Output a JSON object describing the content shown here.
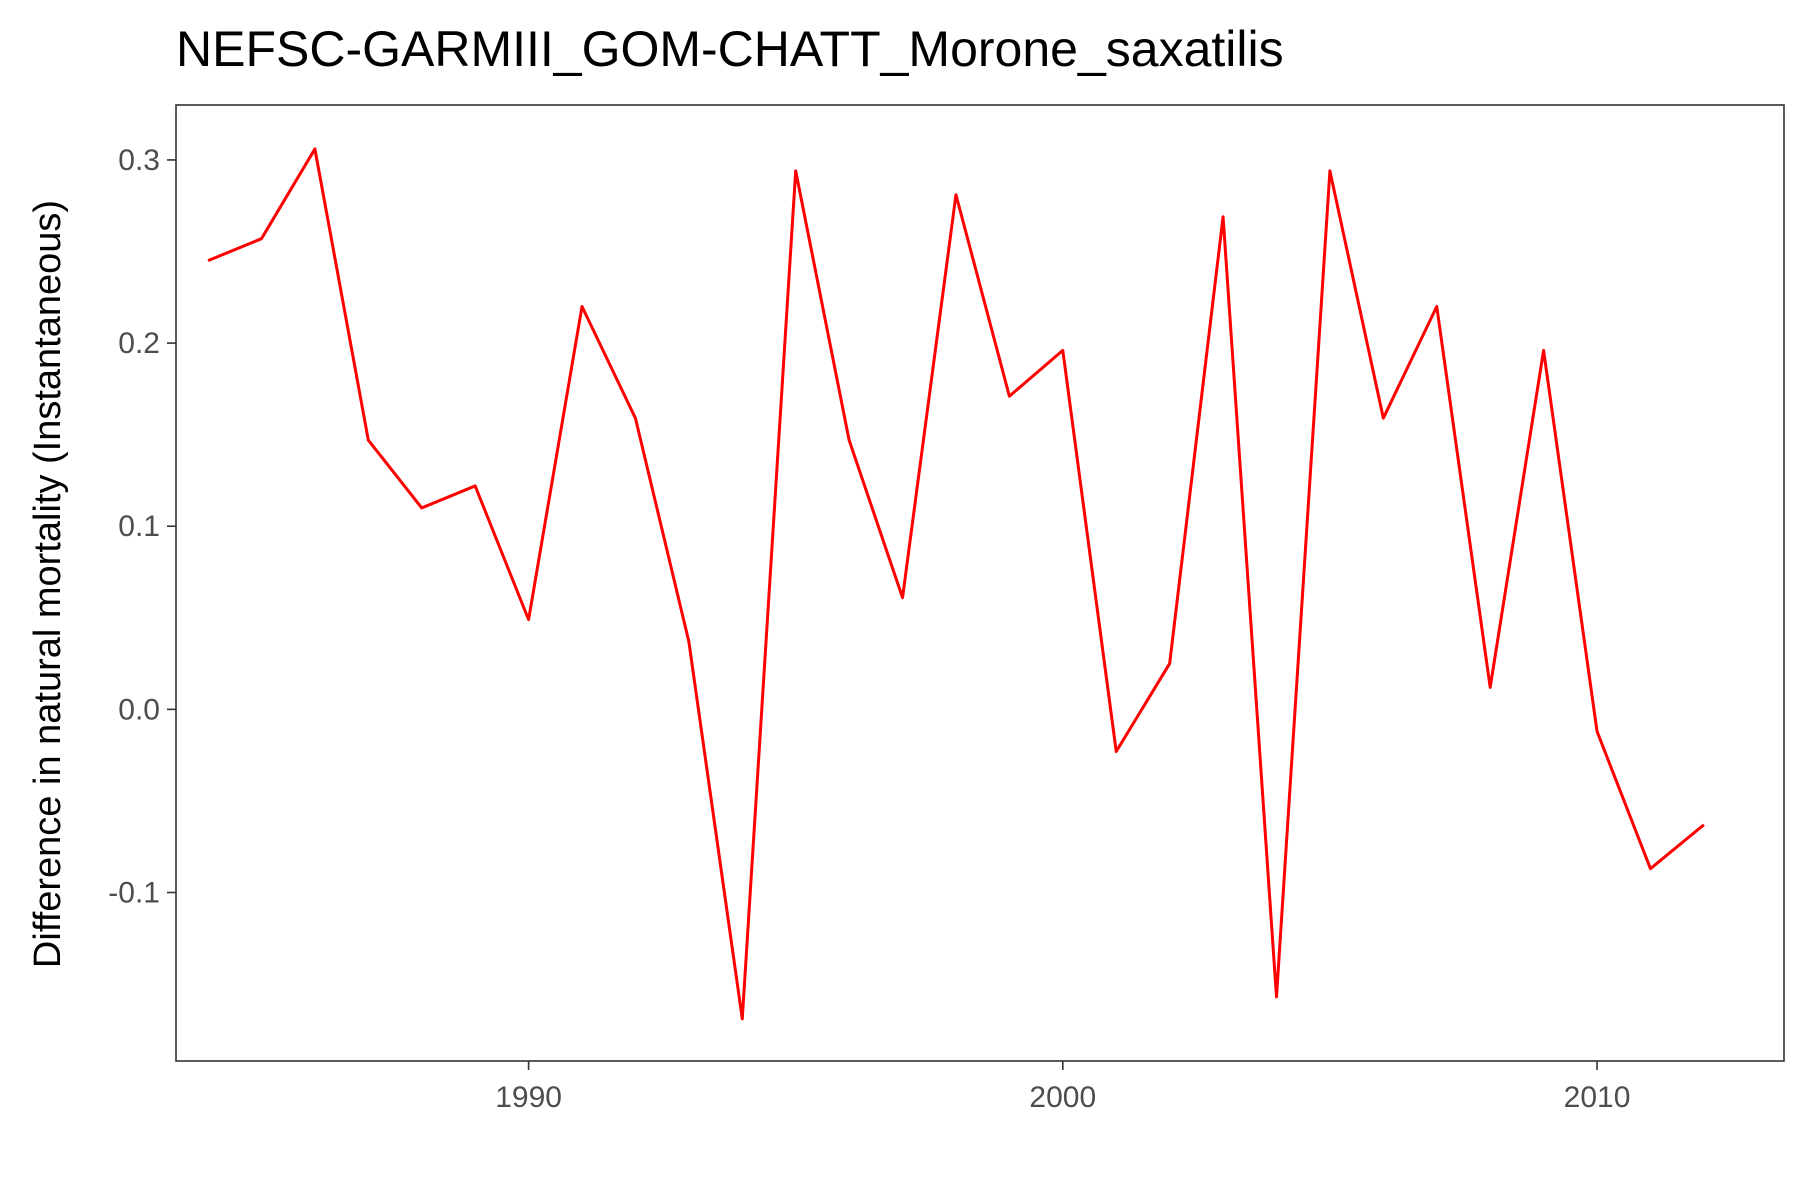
{
  "chart_data": {
    "type": "line",
    "title": "NEFSC-GARMIII_GOM-CHATT_Morone_saxatilis",
    "xlabel": "",
    "ylabel": "Difference in natural mortality (Instantaneous)",
    "xlim": [
      1983.4,
      2013.5
    ],
    "ylim": [
      -0.192,
      0.33
    ],
    "x_ticks": [
      1990,
      2000,
      2010
    ],
    "x_tick_labels": [
      "1990",
      "2000",
      "2010"
    ],
    "y_ticks": [
      -0.1,
      0.0,
      0.1,
      0.2,
      0.3
    ],
    "y_tick_labels": [
      "-0.1",
      "0.0",
      "0.1",
      "0.2",
      "0.3"
    ],
    "grid": false,
    "series": [
      {
        "color": "#ff0000",
        "x": [
          1984,
          1985,
          1986,
          1987,
          1988,
          1989,
          1990,
          1991,
          1992,
          1993,
          1994,
          1995,
          1996,
          1997,
          1998,
          1999,
          2000,
          2001,
          2002,
          2003,
          2004,
          2005,
          2006,
          2007,
          2008,
          2009,
          2010,
          2011,
          2012
        ],
        "values": [
          0.245,
          0.257,
          0.306,
          0.147,
          0.11,
          0.122,
          0.049,
          0.22,
          0.159,
          0.037,
          -0.169,
          0.294,
          0.147,
          0.061,
          0.281,
          0.171,
          0.196,
          -0.023,
          0.025,
          0.269,
          -0.157,
          0.294,
          0.159,
          0.22,
          0.012,
          0.196,
          -0.012,
          -0.087,
          -0.063
        ]
      }
    ]
  }
}
